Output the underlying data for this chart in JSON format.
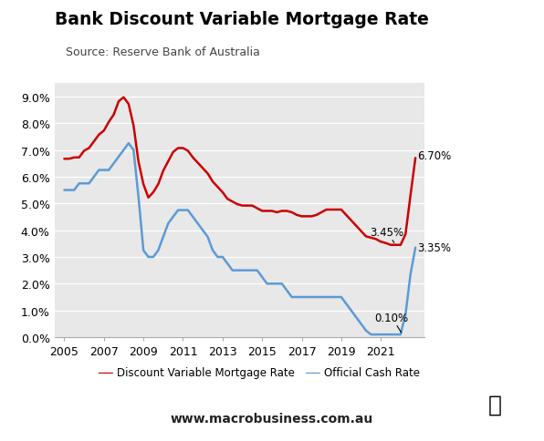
{
  "title": "Bank Discount Variable Mortgage Rate",
  "source": "Source: Reserve Bank of Australia",
  "website": "www.macrobusiness.com.au",
  "bg_color": "#e8e8e8",
  "fig_bg_color": "#ffffff",
  "mortgage_color": "#cc0000",
  "cash_color": "#5b9bd5",
  "mortgage_label": "Discount Variable Mortgage Rate",
  "cash_label": "Official Cash Rate",
  "mortgage_data": [
    [
      2005.0,
      6.67
    ],
    [
      2005.25,
      6.67
    ],
    [
      2005.5,
      6.72
    ],
    [
      2005.75,
      6.72
    ],
    [
      2006.0,
      6.97
    ],
    [
      2006.25,
      7.07
    ],
    [
      2006.5,
      7.32
    ],
    [
      2006.75,
      7.57
    ],
    [
      2007.0,
      7.72
    ],
    [
      2007.25,
      8.05
    ],
    [
      2007.5,
      8.32
    ],
    [
      2007.75,
      8.82
    ],
    [
      2008.0,
      8.97
    ],
    [
      2008.25,
      8.72
    ],
    [
      2008.5,
      7.92
    ],
    [
      2008.75,
      6.57
    ],
    [
      2009.0,
      5.72
    ],
    [
      2009.25,
      5.22
    ],
    [
      2009.5,
      5.42
    ],
    [
      2009.75,
      5.72
    ],
    [
      2010.0,
      6.22
    ],
    [
      2010.25,
      6.57
    ],
    [
      2010.5,
      6.92
    ],
    [
      2010.75,
      7.07
    ],
    [
      2011.0,
      7.07
    ],
    [
      2011.25,
      6.97
    ],
    [
      2011.5,
      6.72
    ],
    [
      2011.75,
      6.52
    ],
    [
      2012.0,
      6.32
    ],
    [
      2012.25,
      6.12
    ],
    [
      2012.5,
      5.82
    ],
    [
      2012.75,
      5.62
    ],
    [
      2013.0,
      5.42
    ],
    [
      2013.25,
      5.17
    ],
    [
      2013.5,
      5.07
    ],
    [
      2013.75,
      4.97
    ],
    [
      2014.0,
      4.92
    ],
    [
      2014.25,
      4.92
    ],
    [
      2014.5,
      4.92
    ],
    [
      2014.75,
      4.82
    ],
    [
      2015.0,
      4.72
    ],
    [
      2015.25,
      4.72
    ],
    [
      2015.5,
      4.72
    ],
    [
      2015.75,
      4.67
    ],
    [
      2016.0,
      4.72
    ],
    [
      2016.25,
      4.72
    ],
    [
      2016.5,
      4.67
    ],
    [
      2016.75,
      4.57
    ],
    [
      2017.0,
      4.52
    ],
    [
      2017.25,
      4.52
    ],
    [
      2017.5,
      4.52
    ],
    [
      2017.75,
      4.57
    ],
    [
      2018.0,
      4.67
    ],
    [
      2018.25,
      4.77
    ],
    [
      2018.5,
      4.77
    ],
    [
      2018.75,
      4.77
    ],
    [
      2019.0,
      4.77
    ],
    [
      2019.25,
      4.57
    ],
    [
      2019.5,
      4.37
    ],
    [
      2019.75,
      4.17
    ],
    [
      2020.0,
      3.97
    ],
    [
      2020.25,
      3.77
    ],
    [
      2020.5,
      3.72
    ],
    [
      2020.75,
      3.67
    ],
    [
      2021.0,
      3.57
    ],
    [
      2021.25,
      3.52
    ],
    [
      2021.5,
      3.45
    ],
    [
      2021.75,
      3.45
    ],
    [
      2022.0,
      3.45
    ],
    [
      2022.25,
      3.85
    ],
    [
      2022.5,
      5.3
    ],
    [
      2022.75,
      6.7
    ]
  ],
  "cash_data": [
    [
      2005.0,
      5.5
    ],
    [
      2005.25,
      5.5
    ],
    [
      2005.5,
      5.5
    ],
    [
      2005.75,
      5.75
    ],
    [
      2006.0,
      5.75
    ],
    [
      2006.25,
      5.75
    ],
    [
      2006.5,
      6.0
    ],
    [
      2006.75,
      6.25
    ],
    [
      2007.0,
      6.25
    ],
    [
      2007.25,
      6.25
    ],
    [
      2007.5,
      6.5
    ],
    [
      2007.75,
      6.75
    ],
    [
      2008.0,
      7.0
    ],
    [
      2008.25,
      7.25
    ],
    [
      2008.5,
      7.0
    ],
    [
      2008.75,
      5.25
    ],
    [
      2009.0,
      3.25
    ],
    [
      2009.25,
      3.0
    ],
    [
      2009.5,
      3.0
    ],
    [
      2009.75,
      3.25
    ],
    [
      2010.0,
      3.75
    ],
    [
      2010.25,
      4.25
    ],
    [
      2010.5,
      4.5
    ],
    [
      2010.75,
      4.75
    ],
    [
      2011.0,
      4.75
    ],
    [
      2011.25,
      4.75
    ],
    [
      2011.5,
      4.5
    ],
    [
      2011.75,
      4.25
    ],
    [
      2012.0,
      4.0
    ],
    [
      2012.25,
      3.75
    ],
    [
      2012.5,
      3.25
    ],
    [
      2012.75,
      3.0
    ],
    [
      2013.0,
      3.0
    ],
    [
      2013.25,
      2.75
    ],
    [
      2013.5,
      2.5
    ],
    [
      2013.75,
      2.5
    ],
    [
      2014.0,
      2.5
    ],
    [
      2014.25,
      2.5
    ],
    [
      2014.5,
      2.5
    ],
    [
      2014.75,
      2.5
    ],
    [
      2015.0,
      2.25
    ],
    [
      2015.25,
      2.0
    ],
    [
      2015.5,
      2.0
    ],
    [
      2015.75,
      2.0
    ],
    [
      2016.0,
      2.0
    ],
    [
      2016.25,
      1.75
    ],
    [
      2016.5,
      1.5
    ],
    [
      2016.75,
      1.5
    ],
    [
      2017.0,
      1.5
    ],
    [
      2017.25,
      1.5
    ],
    [
      2017.5,
      1.5
    ],
    [
      2017.75,
      1.5
    ],
    [
      2018.0,
      1.5
    ],
    [
      2018.25,
      1.5
    ],
    [
      2018.5,
      1.5
    ],
    [
      2018.75,
      1.5
    ],
    [
      2019.0,
      1.5
    ],
    [
      2019.25,
      1.25
    ],
    [
      2019.5,
      1.0
    ],
    [
      2019.75,
      0.75
    ],
    [
      2020.0,
      0.5
    ],
    [
      2020.25,
      0.25
    ],
    [
      2020.5,
      0.1
    ],
    [
      2020.75,
      0.1
    ],
    [
      2021.0,
      0.1
    ],
    [
      2021.25,
      0.1
    ],
    [
      2021.5,
      0.1
    ],
    [
      2021.75,
      0.1
    ],
    [
      2022.0,
      0.1
    ],
    [
      2022.25,
      0.85
    ],
    [
      2022.5,
      2.35
    ],
    [
      2022.75,
      3.35
    ]
  ],
  "xlim": [
    2004.5,
    2023.2
  ],
  "ylim": [
    0.0,
    9.5
  ],
  "yticks": [
    0.0,
    1.0,
    2.0,
    3.0,
    4.0,
    5.0,
    6.0,
    7.0,
    8.0,
    9.0
  ],
  "xticks": [
    2005,
    2007,
    2009,
    2011,
    2013,
    2015,
    2017,
    2019,
    2021
  ],
  "macro_box_color": "#cc0000",
  "macro_text_color": "#ffffff"
}
